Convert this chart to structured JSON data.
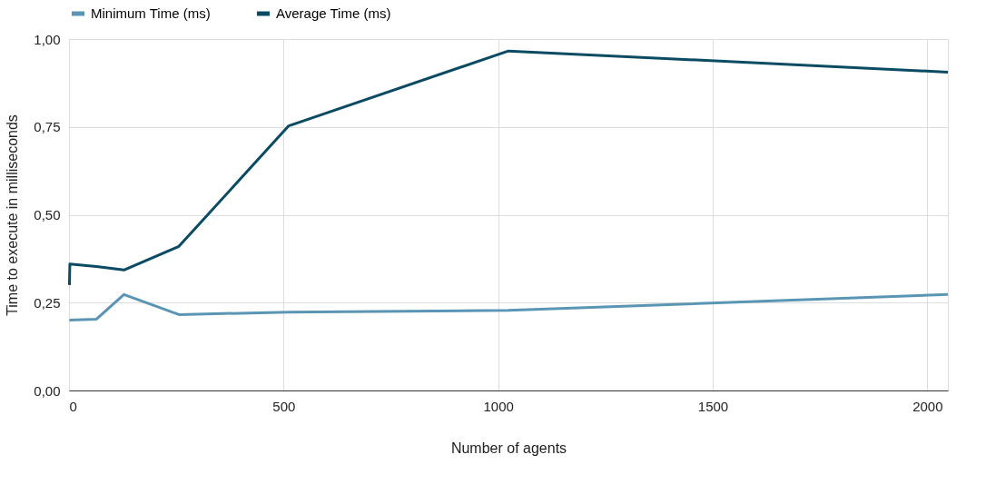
{
  "chart_data": {
    "type": "line",
    "xlabel": "Number of agents",
    "ylabel": "Time to execute in milliseconds",
    "xlim": [
      0,
      2048
    ],
    "xticks": [
      0,
      500,
      1000,
      1500,
      2000
    ],
    "ylim": [
      0,
      1
    ],
    "yticks": [
      {
        "value": 0,
        "label": "0,00"
      },
      {
        "value": 0.25,
        "label": "0,25"
      },
      {
        "value": 0.5,
        "label": "0,50"
      },
      {
        "value": 0.75,
        "label": "0,75"
      },
      {
        "value": 1,
        "label": "1,00"
      }
    ],
    "grid": true,
    "legend": "top",
    "line_style": "solid",
    "marker": "none",
    "series": [
      {
        "name": "Minimum Time (ms)",
        "color": "#5b95b5",
        "x": [
          1,
          64,
          128,
          256,
          512,
          1024,
          2048
        ],
        "values": [
          0.2,
          0.203,
          0.273,
          0.216,
          0.223,
          0.228,
          0.273
        ]
      },
      {
        "name": "Average Time (ms)",
        "color": "#0b4a63",
        "x": [
          1,
          2,
          64,
          128,
          256,
          512,
          1024,
          2048
        ],
        "values": [
          0.3,
          0.36,
          0.353,
          0.343,
          0.41,
          0.753,
          0.966,
          0.906
        ]
      }
    ]
  }
}
